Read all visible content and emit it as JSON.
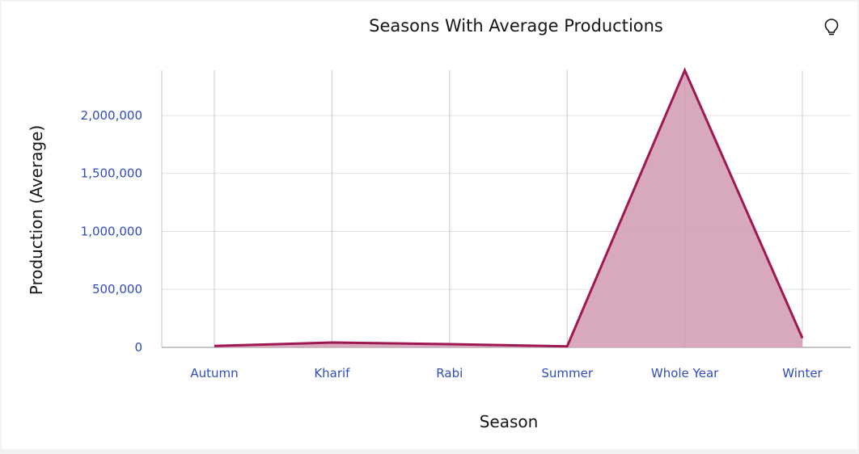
{
  "chart_data": {
    "type": "area",
    "title": "Seasons With Average Productions",
    "xlabel": "Season",
    "ylabel": "Production (Average)",
    "categories": [
      "Autumn",
      "Kharif",
      "Rabi",
      "Summer",
      "Whole Year",
      "Winter"
    ],
    "values": [
      12000,
      42000,
      28000,
      9000,
      2390000,
      80000
    ],
    "ylim": [
      0,
      2390000
    ],
    "yticks": [
      0,
      500000,
      1000000,
      1500000,
      2000000
    ],
    "ytick_labels": [
      "0",
      "500,000",
      "1,000,000",
      "1,500,000",
      "2,000,000"
    ],
    "grid": true,
    "colors": {
      "line": "#9f1853",
      "fill": "#d6a3b8",
      "grid": "#e0e0e0",
      "tick_text": "#2f4bbd"
    }
  },
  "toolbar": {
    "insight_icon": "lightbulb-icon"
  }
}
